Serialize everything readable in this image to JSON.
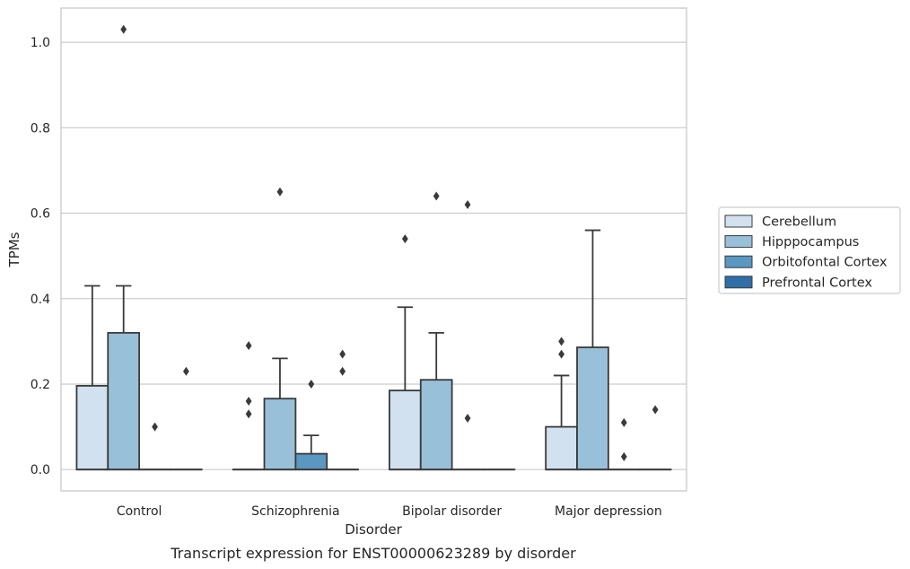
{
  "chart_data": {
    "type": "box",
    "caption": "Transcript expression for ENST00000623289 by disorder",
    "xlabel": "Disorder",
    "ylabel": "TPMs",
    "ylim": [
      -0.05,
      1.08
    ],
    "yticks": [
      "0.0",
      "0.2",
      "0.4",
      "0.6",
      "0.8",
      "1.0"
    ],
    "grid": "horizontal",
    "legend_position": "right",
    "categories": [
      "Control",
      "Schizophrenia",
      "Bipolar disorder",
      "Major depression"
    ],
    "series": [
      {
        "name": "Cerebellum",
        "color": "#d1e1ef",
        "boxes": [
          {
            "q1": 0.0,
            "median": 0.0,
            "q3": 0.196,
            "whislo": 0.0,
            "whishi": 0.43,
            "fliers": []
          },
          {
            "q1": 0.0,
            "median": 0.0,
            "q3": 0.0,
            "whislo": 0.0,
            "whishi": 0.0,
            "fliers": [
              0.29,
              0.16,
              0.13
            ]
          },
          {
            "q1": 0.0,
            "median": 0.0,
            "q3": 0.185,
            "whislo": 0.0,
            "whishi": 0.38,
            "fliers": [
              0.54
            ]
          },
          {
            "q1": 0.0,
            "median": 0.0,
            "q3": 0.1,
            "whislo": 0.0,
            "whishi": 0.22,
            "fliers": [
              0.3,
              0.27
            ]
          }
        ]
      },
      {
        "name": "Hipppocampus",
        "color": "#99c0d9",
        "boxes": [
          {
            "q1": 0.0,
            "median": 0.0,
            "q3": 0.32,
            "whislo": 0.0,
            "whishi": 0.43,
            "fliers": [
              1.03
            ]
          },
          {
            "q1": 0.0,
            "median": 0.0,
            "q3": 0.166,
            "whislo": 0.0,
            "whishi": 0.26,
            "fliers": [
              0.65
            ]
          },
          {
            "q1": 0.0,
            "median": 0.0,
            "q3": 0.21,
            "whislo": 0.0,
            "whishi": 0.32,
            "fliers": [
              0.64
            ]
          },
          {
            "q1": 0.0,
            "median": 0.0,
            "q3": 0.286,
            "whislo": 0.0,
            "whishi": 0.56,
            "fliers": []
          }
        ]
      },
      {
        "name": "Orbitofontal Cortex",
        "color": "#5a97c1",
        "boxes": [
          {
            "q1": 0.0,
            "median": 0.0,
            "q3": 0.0,
            "whislo": 0.0,
            "whishi": 0.0,
            "fliers": [
              0.1
            ]
          },
          {
            "q1": 0.0,
            "median": 0.0,
            "q3": 0.037,
            "whislo": 0.0,
            "whishi": 0.08,
            "fliers": [
              0.2
            ]
          },
          {
            "q1": 0.0,
            "median": 0.0,
            "q3": 0.0,
            "whislo": 0.0,
            "whishi": 0.0,
            "fliers": [
              0.62,
              0.12
            ]
          },
          {
            "q1": 0.0,
            "median": 0.0,
            "q3": 0.0,
            "whislo": 0.0,
            "whishi": 0.0,
            "fliers": [
              0.11,
              0.03
            ]
          }
        ]
      },
      {
        "name": "Prefrontal Cortex",
        "color": "#2f6ea6",
        "boxes": [
          {
            "q1": 0.0,
            "median": 0.0,
            "q3": 0.0,
            "whislo": 0.0,
            "whishi": 0.0,
            "fliers": [
              0.23
            ]
          },
          {
            "q1": 0.0,
            "median": 0.0,
            "q3": 0.0,
            "whislo": 0.0,
            "whishi": 0.0,
            "fliers": [
              0.27,
              0.23
            ]
          },
          {
            "q1": 0.0,
            "median": 0.0,
            "q3": 0.0,
            "whislo": 0.0,
            "whishi": 0.0,
            "fliers": []
          },
          {
            "q1": 0.0,
            "median": 0.0,
            "q3": 0.0,
            "whislo": 0.0,
            "whishi": 0.0,
            "fliers": [
              0.14
            ]
          }
        ]
      }
    ]
  },
  "style": {
    "box_edge_color": "#3a3a3a",
    "grid_color": "#cccccc",
    "frame_color": "#cccccc",
    "legend_border_color": "#cccccc"
  }
}
